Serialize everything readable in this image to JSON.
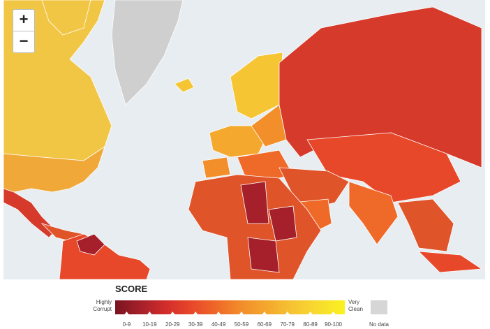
{
  "controls": {
    "zoom_in": "+",
    "zoom_out": "−"
  },
  "legend": {
    "title": "SCORE",
    "low_label": [
      "Highly",
      "Corrupt"
    ],
    "high_label": [
      "Very",
      "Clean"
    ],
    "no_data": "No data",
    "no_data_color": "#d6d6d6",
    "items": [
      {
        "label": "0-9",
        "color": "#7a1420"
      },
      {
        "label": "10-19",
        "color": "#a5202a"
      },
      {
        "label": "20-29",
        "color": "#d32d2b"
      },
      {
        "label": "30-39",
        "color": "#e8482a"
      },
      {
        "label": "40-49",
        "color": "#ef6a28"
      },
      {
        "label": "50-59",
        "color": "#f28f2a"
      },
      {
        "label": "60-69",
        "color": "#f4a92e"
      },
      {
        "label": "70-79",
        "color": "#f6c534"
      },
      {
        "label": "80-89",
        "color": "#f8dc2e"
      },
      {
        "label": "90-100",
        "color": "#fbf21e"
      }
    ]
  }
}
